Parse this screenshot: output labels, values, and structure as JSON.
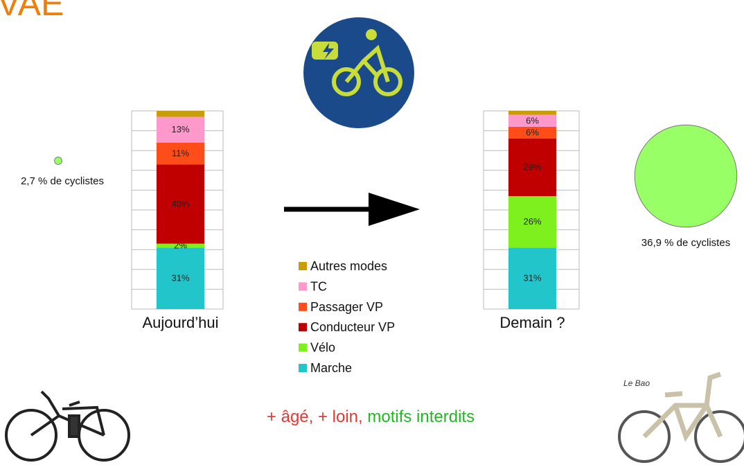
{
  "title": "VAE",
  "chart_data": [
    {
      "type": "stacked_bar",
      "categories": [
        "Aujourd’hui",
        "Demain ?"
      ],
      "ylim": [
        0,
        100
      ],
      "yticks": [
        0,
        10,
        20,
        30,
        40,
        50,
        60,
        70,
        80,
        90,
        100
      ],
      "grid": true,
      "series": [
        {
          "name": "Marche",
          "color": "#22c5c9",
          "values": [
            31,
            31
          ],
          "value_labels": [
            "31%",
            "31%"
          ]
        },
        {
          "name": "Vélo",
          "color": "#7ef01e",
          "values": [
            2,
            26
          ],
          "value_labels": [
            "2%",
            "26%"
          ]
        },
        {
          "name": "Conducteur VP",
          "color": "#c00000",
          "values": [
            40,
            29
          ],
          "value_labels": [
            "40%",
            "29%"
          ]
        },
        {
          "name": "Passager VP",
          "color": "#ff4d1a",
          "values": [
            11,
            6
          ],
          "value_labels": [
            "11%",
            "6%"
          ]
        },
        {
          "name": "TC",
          "color": "#ff99cc",
          "values": [
            13,
            6
          ],
          "value_labels": [
            "13%",
            "6%"
          ]
        },
        {
          "name": "Autres modes",
          "color": "#c99d0a",
          "values": [
            3,
            2
          ],
          "value_labels": [
            null,
            null
          ]
        }
      ]
    },
    {
      "type": "bubble",
      "color": "#99ff66",
      "values": [
        2.7,
        36.9
      ],
      "value_labels": [
        "2,7 % de cyclistes",
        "36,9 % de cyclistes"
      ]
    }
  ],
  "caption": [
    {
      "text": "+ âgé, + loin,",
      "color": "#e53935"
    },
    {
      "text": "motifs interdits",
      "color": "#22b822"
    }
  ]
}
